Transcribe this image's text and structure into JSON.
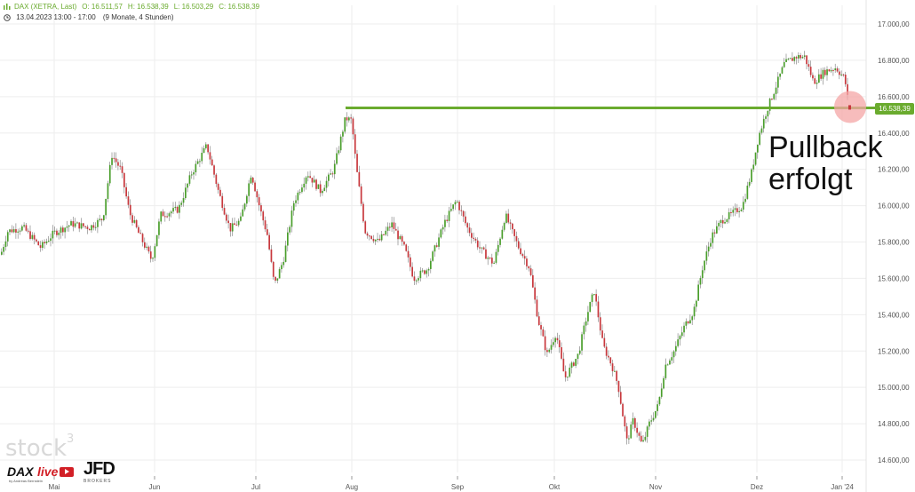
{
  "header": {
    "instrument": "DAX (XETRA, Last)",
    "open": "O: 16.511,57",
    "high": "H: 16.538,39",
    "low": "L: 16.503,29",
    "close": "C: 16.538,39",
    "period": "13.04.2023 13:00 - 17:00",
    "range": "(9 Monate, 4 Stunden)"
  },
  "annotation": {
    "line1": "Pullback",
    "line2": "erfolgt"
  },
  "price_tag": "16.538,39",
  "watermark": "stock",
  "watermark_sup": "3",
  "logos": {
    "dax_text": "DAX",
    "dax_live": "live",
    "dax_sub": "by Andreas Bernstein",
    "jfd": "JFD",
    "jfd_sub": "BROKERS"
  },
  "colors": {
    "up": "#4a9e2c",
    "down": "#c8383d",
    "support_line": "#6aab2e",
    "highlight": "#f4a6a6",
    "grid": "#eeeeee"
  },
  "chart_data": {
    "type": "candlestick",
    "x_tick_labels": [
      "Mai",
      "Jun",
      "Jul",
      "Aug",
      "Sep",
      "Okt",
      "Nov",
      "Dez",
      "Jan '24"
    ],
    "y_tick_labels": [
      "14.600,00",
      "14.800,00",
      "15.000,00",
      "15.200,00",
      "15.400,00",
      "15.600,00",
      "15.800,00",
      "16.000,00",
      "16.200,00",
      "16.400,00",
      "16.600,00",
      "16.800,00",
      "17.000,00"
    ],
    "ylim": [
      14550,
      17050
    ],
    "support_level": 16538.39,
    "last_close": 16538.39,
    "price_path": [
      [
        0,
        15730
      ],
      [
        8,
        15860
      ],
      [
        25,
        15880
      ],
      [
        45,
        15770
      ],
      [
        60,
        15850
      ],
      [
        80,
        15900
      ],
      [
        100,
        15880
      ],
      [
        115,
        15930
      ],
      [
        125,
        16280
      ],
      [
        135,
        16200
      ],
      [
        145,
        15960
      ],
      [
        155,
        15850
      ],
      [
        170,
        15700
      ],
      [
        180,
        15950
      ],
      [
        200,
        15980
      ],
      [
        215,
        16180
      ],
      [
        232,
        16330
      ],
      [
        245,
        16080
      ],
      [
        258,
        15870
      ],
      [
        270,
        15920
      ],
      [
        282,
        16180
      ],
      [
        292,
        15980
      ],
      [
        300,
        15840
      ],
      [
        308,
        15560
      ],
      [
        318,
        15700
      ],
      [
        330,
        16020
      ],
      [
        345,
        16180
      ],
      [
        360,
        16080
      ],
      [
        375,
        16200
      ],
      [
        388,
        16480
      ],
      [
        395,
        16470
      ],
      [
        400,
        16220
      ],
      [
        410,
        15860
      ],
      [
        425,
        15800
      ],
      [
        440,
        15900
      ],
      [
        455,
        15760
      ],
      [
        465,
        15600
      ],
      [
        480,
        15650
      ],
      [
        500,
        15910
      ],
      [
        513,
        16030
      ],
      [
        525,
        15880
      ],
      [
        540,
        15760
      ],
      [
        555,
        15680
      ],
      [
        568,
        15950
      ],
      [
        582,
        15780
      ],
      [
        595,
        15660
      ],
      [
        605,
        15370
      ],
      [
        615,
        15180
      ],
      [
        625,
        15300
      ],
      [
        635,
        15050
      ],
      [
        650,
        15180
      ],
      [
        660,
        15400
      ],
      [
        668,
        15530
      ],
      [
        678,
        15230
      ],
      [
        688,
        15120
      ],
      [
        695,
        15010
      ],
      [
        705,
        14700
      ],
      [
        712,
        14820
      ],
      [
        722,
        14680
      ],
      [
        730,
        14800
      ],
      [
        740,
        14900
      ],
      [
        748,
        15120
      ],
      [
        758,
        15200
      ],
      [
        770,
        15340
      ],
      [
        780,
        15420
      ],
      [
        790,
        15660
      ],
      [
        800,
        15830
      ],
      [
        812,
        15920
      ],
      [
        822,
        15950
      ],
      [
        835,
        16000
      ],
      [
        845,
        16180
      ],
      [
        853,
        16380
      ],
      [
        862,
        16520
      ],
      [
        872,
        16650
      ],
      [
        882,
        16780
      ],
      [
        895,
        16820
      ],
      [
        905,
        16820
      ],
      [
        915,
        16680
      ],
      [
        928,
        16740
      ],
      [
        940,
        16760
      ],
      [
        950,
        16700
      ],
      [
        955,
        16538
      ]
    ]
  }
}
